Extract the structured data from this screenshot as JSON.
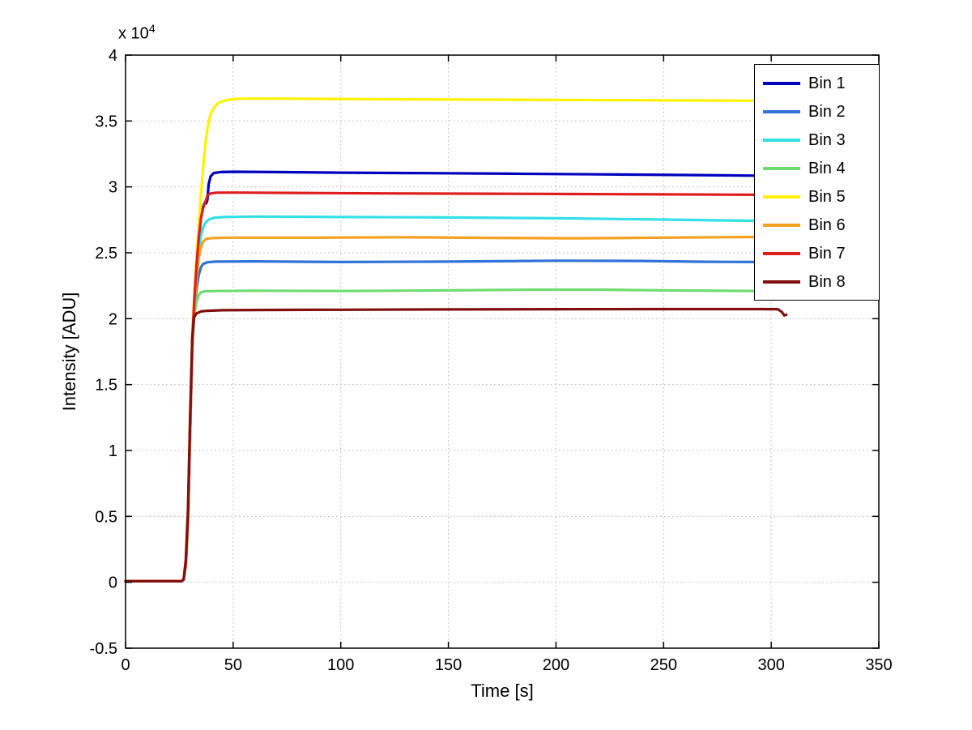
{
  "figure": {
    "background": "#FFFFFF",
    "axes_color": "#000000",
    "grid_color": "#B5B5B5"
  },
  "chart_data": {
    "type": "line",
    "title": "",
    "xlabel": "Time [s]",
    "ylabel": "Intensity [ADU]",
    "y_multiplier_base": "x 10",
    "y_multiplier_exponent": "4",
    "xlim": [
      0,
      350
    ],
    "ylim": [
      -5000,
      40000
    ],
    "xticks": [
      0,
      50,
      100,
      150,
      200,
      250,
      300,
      350
    ],
    "xtick_labels": [
      "0",
      "50",
      "100",
      "150",
      "200",
      "250",
      "300",
      "350"
    ],
    "yticks": [
      -5000,
      0,
      5000,
      10000,
      15000,
      20000,
      25000,
      30000,
      35000,
      40000
    ],
    "ytick_labels": [
      "-0.5",
      "0",
      "0.5",
      "1",
      "1.5",
      "2",
      "2.5",
      "3",
      "3.5",
      "4"
    ],
    "grid": true,
    "legend_position": "top-right",
    "series": [
      {
        "name": "Bin 1",
        "color": "#0000BD",
        "plateau": 31100,
        "points": [
          [
            0,
            80
          ],
          [
            26,
            80
          ],
          [
            27,
            200
          ],
          [
            28,
            1500
          ],
          [
            29,
            5000
          ],
          [
            30,
            11800
          ],
          [
            31,
            18300
          ],
          [
            32,
            21400
          ],
          [
            33,
            23900
          ],
          [
            34,
            25900
          ],
          [
            35,
            27600
          ],
          [
            36,
            28500
          ],
          [
            36.8,
            28800
          ],
          [
            37.5,
            28750
          ],
          [
            38,
            29000
          ],
          [
            38.6,
            30200
          ],
          [
            39.5,
            30800
          ],
          [
            41,
            31050
          ],
          [
            44,
            31120
          ],
          [
            50,
            31150
          ],
          [
            70,
            31120
          ],
          [
            100,
            31080
          ],
          [
            140,
            31040
          ],
          [
            180,
            31000
          ],
          [
            220,
            30950
          ],
          [
            260,
            30900
          ],
          [
            293,
            30850
          ]
        ]
      },
      {
        "name": "Bin 2",
        "color": "#3173D8",
        "plateau": 24300,
        "points": [
          [
            0,
            80
          ],
          [
            26,
            80
          ],
          [
            27,
            200
          ],
          [
            28,
            1300
          ],
          [
            29,
            4500
          ],
          [
            30,
            11200
          ],
          [
            31,
            17800
          ],
          [
            32,
            20700
          ],
          [
            33,
            22300
          ],
          [
            34,
            23300
          ],
          [
            35,
            23900
          ],
          [
            36,
            24150
          ],
          [
            38,
            24280
          ],
          [
            42,
            24330
          ],
          [
            60,
            24350
          ],
          [
            100,
            24300
          ],
          [
            150,
            24330
          ],
          [
            200,
            24400
          ],
          [
            240,
            24380
          ],
          [
            270,
            24320
          ],
          [
            293,
            24300
          ]
        ]
      },
      {
        "name": "Bin 3",
        "color": "#33E0E6",
        "plateau": 27700,
        "points": [
          [
            0,
            80
          ],
          [
            26,
            80
          ],
          [
            27,
            200
          ],
          [
            28,
            1350
          ],
          [
            29,
            4700
          ],
          [
            30,
            11400
          ],
          [
            31,
            18000
          ],
          [
            32,
            21100
          ],
          [
            33,
            23400
          ],
          [
            34,
            25100
          ],
          [
            35,
            26300
          ],
          [
            36,
            26900
          ],
          [
            37,
            27250
          ],
          [
            38.5,
            27500
          ],
          [
            41,
            27650
          ],
          [
            46,
            27720
          ],
          [
            60,
            27750
          ],
          [
            100,
            27720
          ],
          [
            150,
            27680
          ],
          [
            200,
            27620
          ],
          [
            250,
            27520
          ],
          [
            280,
            27450
          ],
          [
            293,
            27430
          ]
        ]
      },
      {
        "name": "Bin 4",
        "color": "#6FDC6F",
        "plateau": 22100,
        "points": [
          [
            0,
            80
          ],
          [
            26,
            80
          ],
          [
            27,
            200
          ],
          [
            28,
            1250
          ],
          [
            29,
            4400
          ],
          [
            30,
            11300
          ],
          [
            31,
            17900
          ],
          [
            32,
            20300
          ],
          [
            33,
            21300
          ],
          [
            34,
            21800
          ],
          [
            35,
            22000
          ],
          [
            37,
            22080
          ],
          [
            42,
            22100
          ],
          [
            60,
            22120
          ],
          [
            100,
            22100
          ],
          [
            150,
            22150
          ],
          [
            190,
            22200
          ],
          [
            220,
            22200
          ],
          [
            250,
            22150
          ],
          [
            293,
            22100
          ]
        ]
      },
      {
        "name": "Bin 5",
        "color": "#FFF200",
        "plateau": 36650,
        "points": [
          [
            0,
            80
          ],
          [
            26,
            80
          ],
          [
            27,
            250
          ],
          [
            28,
            1600
          ],
          [
            29,
            5300
          ],
          [
            30,
            12300
          ],
          [
            31,
            18700
          ],
          [
            32,
            21900
          ],
          [
            33,
            24600
          ],
          [
            34,
            27100
          ],
          [
            35,
            29400
          ],
          [
            36,
            31400
          ],
          [
            37,
            33100
          ],
          [
            38,
            34400
          ],
          [
            39,
            35200
          ],
          [
            40,
            35700
          ],
          [
            41.5,
            36100
          ],
          [
            43,
            36350
          ],
          [
            45,
            36500
          ],
          [
            48,
            36620
          ],
          [
            53,
            36690
          ],
          [
            70,
            36700
          ],
          [
            110,
            36660
          ],
          [
            150,
            36630
          ],
          [
            200,
            36600
          ],
          [
            250,
            36570
          ],
          [
            293,
            36540
          ]
        ]
      },
      {
        "name": "Bin 6",
        "color": "#F5A01E",
        "plateau": 26150,
        "points": [
          [
            0,
            80
          ],
          [
            26,
            80
          ],
          [
            27,
            200
          ],
          [
            28,
            1300
          ],
          [
            29,
            4600
          ],
          [
            30,
            11300
          ],
          [
            31,
            17900
          ],
          [
            32,
            21000
          ],
          [
            33,
            23100
          ],
          [
            34,
            24600
          ],
          [
            35,
            25400
          ],
          [
            36,
            25850
          ],
          [
            37.5,
            26050
          ],
          [
            40,
            26120
          ],
          [
            50,
            26150
          ],
          [
            90,
            26150
          ],
          [
            130,
            26180
          ],
          [
            170,
            26130
          ],
          [
            210,
            26100
          ],
          [
            250,
            26150
          ],
          [
            293,
            26200
          ]
        ]
      },
      {
        "name": "Bin 7",
        "color": "#DE1E1E",
        "plateau": 29550,
        "points": [
          [
            0,
            80
          ],
          [
            26,
            80
          ],
          [
            27,
            220
          ],
          [
            28,
            1450
          ],
          [
            29,
            5000
          ],
          [
            30,
            11900
          ],
          [
            31,
            18400
          ],
          [
            32,
            21600
          ],
          [
            33,
            24100
          ],
          [
            34,
            26100
          ],
          [
            35,
            27600
          ],
          [
            36,
            28400
          ],
          [
            37,
            28800
          ],
          [
            38,
            29350
          ],
          [
            39.5,
            29500
          ],
          [
            42,
            29560
          ],
          [
            50,
            29570
          ],
          [
            90,
            29530
          ],
          [
            130,
            29500
          ],
          [
            170,
            29480
          ],
          [
            210,
            29460
          ],
          [
            250,
            29430
          ],
          [
            293,
            29400
          ]
        ]
      },
      {
        "name": "Bin 8",
        "color": "#820F0F",
        "plateau": 20650,
        "points": [
          [
            0,
            80
          ],
          [
            26,
            80
          ],
          [
            27,
            200
          ],
          [
            28,
            1700
          ],
          [
            29,
            5600
          ],
          [
            30,
            12600
          ],
          [
            31,
            18600
          ],
          [
            31.8,
            20100
          ],
          [
            33,
            20400
          ],
          [
            35,
            20550
          ],
          [
            38,
            20600
          ],
          [
            45,
            20640
          ],
          [
            60,
            20660
          ],
          [
            100,
            20680
          ],
          [
            150,
            20700
          ],
          [
            200,
            20720
          ],
          [
            250,
            20730
          ],
          [
            295,
            20730
          ],
          [
            303,
            20720
          ],
          [
            305,
            20500
          ],
          [
            306,
            20250
          ],
          [
            307,
            20300
          ]
        ]
      }
    ]
  }
}
